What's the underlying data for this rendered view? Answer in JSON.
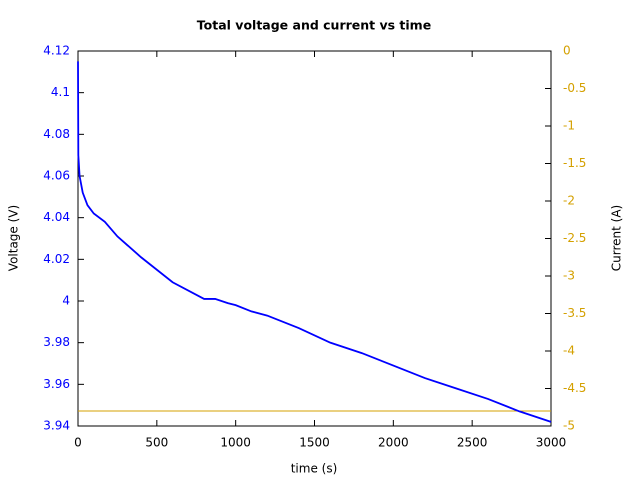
{
  "chart_data": {
    "type": "line",
    "title": "Total voltage and current vs time",
    "xlabel": "time (s)",
    "ylabel": "Voltage (V)",
    "y2label": "Current (A)",
    "xlim": [
      0,
      3000
    ],
    "xticks": [
      0,
      500,
      1000,
      1500,
      2000,
      2500,
      3000
    ],
    "ylim": [
      3.94,
      4.12
    ],
    "yticks": [
      3.94,
      3.96,
      3.98,
      4,
      4.02,
      4.04,
      4.06,
      4.08,
      4.1,
      4.12
    ],
    "y2lim": [
      -5,
      0
    ],
    "y2ticks": [
      -5,
      -4.5,
      -4,
      -3.5,
      -3,
      -2.5,
      -2,
      -1.5,
      -1,
      -0.5,
      0
    ],
    "series": [
      {
        "color": "#0000ff",
        "x": [
          0,
          2,
          10,
          30,
          60,
          100,
          170,
          250,
          400,
          600,
          800,
          870,
          950,
          1000,
          1100,
          1200,
          1400,
          1600,
          1800,
          2000,
          2200,
          2400,
          2600,
          2800,
          3000
        ],
        "values": [
          4.115,
          4.07,
          4.06,
          4.052,
          4.046,
          4.042,
          4.038,
          4.031,
          4.021,
          4.009,
          4.001,
          4.001,
          3.999,
          3.998,
          3.995,
          3.993,
          3.987,
          3.98,
          3.975,
          3.969,
          3.963,
          3.958,
          3.953,
          3.947,
          3.942
        ]
      },
      {
        "color": "#d4a000",
        "axis": "y2",
        "x": [
          0,
          3000
        ],
        "values": [
          -4.8,
          -4.8
        ]
      }
    ]
  }
}
